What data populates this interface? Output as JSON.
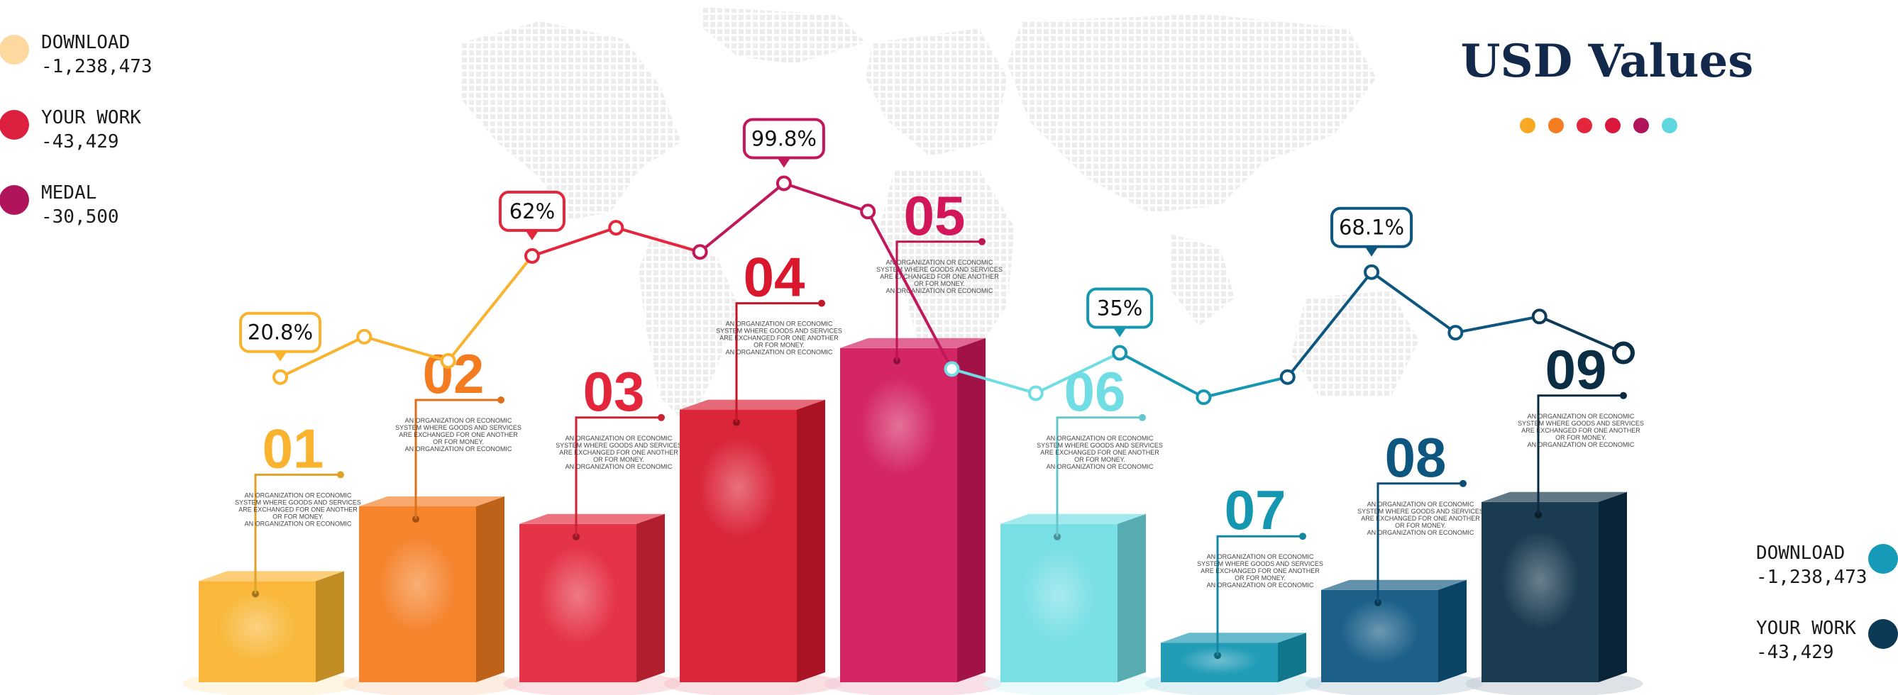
{
  "title": "USD Values",
  "title_dots": [
    "#f9a825",
    "#f57c20",
    "#e3263b",
    "#d9183b",
    "#b0155b",
    "#5fd7de"
  ],
  "legend_left": [
    {
      "name": "DOWNLOAD",
      "value": "-1,238,473",
      "color": "#fdd9a0"
    },
    {
      "name": "YOUR WORK",
      "value": "-43,429",
      "color": "#de2040"
    },
    {
      "name": "MEDAL",
      "value": "-30,500",
      "color": "#b0155b"
    }
  ],
  "legend_right": [
    {
      "name": "DOWNLOAD",
      "value": "-1,238,473",
      "color": "#159ab8"
    },
    {
      "name": "YOUR WORK",
      "value": "-43,429",
      "color": "#0b3a56"
    }
  ],
  "chart_data": {
    "type": "bar",
    "categories": [
      "01",
      "02",
      "03",
      "04",
      "05",
      "06",
      "07",
      "08",
      "09"
    ],
    "values": [
      23,
      40,
      36,
      62,
      76,
      36,
      9,
      21,
      41
    ],
    "bar_colors": [
      "#f9b32e",
      "#f47c20",
      "#e3263b",
      "#d9182d",
      "#d1175a",
      "#6fdde3",
      "#1597b2",
      "#0d5680",
      "#0b2e45"
    ],
    "descriptions": [
      [
        "AN ORGANIZATION OR ECONOMIC",
        "SYSTEM WHERE GOODS AND SERVICES",
        "ARE EXCHANGED FOR ONE ANOTHER",
        "OR FOR MONEY.",
        "AN ORGANIZATION OR ECONOMIC"
      ],
      [
        "AN ORGANIZATION OR ECONOMIC",
        "SYSTEM WHERE GOODS AND SERVICES",
        "ARE EXCHANGED FOR ONE ANOTHER",
        "OR FOR MONEY.",
        "AN ORGANIZATION OR ECONOMIC"
      ],
      [
        "AN ORGANIZATION OR ECONOMIC",
        "SYSTEM WHERE GOODS AND SERVICES",
        "ARE EXCHANGED FOR ONE ANOTHER",
        "OR FOR MONEY.",
        "AN ORGANIZATION OR ECONOMIC"
      ],
      [
        "AN ORGANIZATION OR ECONOMIC",
        "SYSTEM WHERE GOODS AND SERVICES",
        "ARE EXCHANGED FOR ONE ANOTHER",
        "OR FOR MONEY.",
        "AN ORGANIZATION OR ECONOMIC"
      ],
      [
        "AN ORGANIZATION OR ECONOMIC",
        "SYSTEM WHERE GOODS AND SERVICES",
        "ARE EXCHANGED FOR ONE ANOTHER",
        "OR FOR MONEY.",
        "AN ORGANIZATION OR ECONOMIC"
      ],
      [
        "AN ORGANIZATION OR ECONOMIC",
        "SYSTEM WHERE GOODS AND SERVICES",
        "ARE EXCHANGED FOR ONE ANOTHER",
        "OR FOR MONEY.",
        "AN ORGANIZATION OR ECONOMIC"
      ],
      [
        "AN ORGANIZATION OR ECONOMIC",
        "SYSTEM WHERE GOODS AND SERVICES",
        "ARE EXCHANGED FOR ONE ANOTHER",
        "OR FOR MONEY.",
        "AN ORGANIZATION OR ECONOMIC"
      ],
      [
        "AN ORGANIZATION OR ECONOMIC",
        "SYSTEM WHERE GOODS AND SERVICES",
        "ARE EXCHANGED FOR ONE ANOTHER",
        "OR FOR MONEY.",
        "AN ORGANIZATION OR ECONOMIC"
      ],
      [
        "AN ORGANIZATION OR ECONOMIC",
        "SYSTEM WHERE GOODS AND SERVICES",
        "ARE EXCHANGED FOR ONE ANOTHER",
        "OR FOR MONEY.",
        "AN ORGANIZATION OR ECONOMIC"
      ]
    ],
    "line": {
      "type": "line",
      "y": [
        52,
        62,
        56,
        82,
        89,
        83,
        100,
        93,
        54,
        48,
        58,
        47,
        52,
        78,
        63,
        67,
        58
      ],
      "point_colors": [
        "#f9b32e",
        "#f9b32e",
        "#f9b32e",
        "#e3263b",
        "#e3263b",
        "#c0185a",
        "#c0185a",
        "#c0185a",
        "#6fdde3",
        "#6fdde3",
        "#1597b2",
        "#1597b2",
        "#0d5680",
        "#0d5680",
        "#0d5680",
        "#0d3a56",
        "#0b2e45"
      ],
      "labels": [
        {
          "point": 0,
          "text": "20.8%"
        },
        {
          "point": 3,
          "text": "62%"
        },
        {
          "point": 6,
          "text": "99.8%"
        },
        {
          "point": 10,
          "text": "35%"
        },
        {
          "point": 13,
          "text": "68.1%"
        }
      ]
    }
  }
}
